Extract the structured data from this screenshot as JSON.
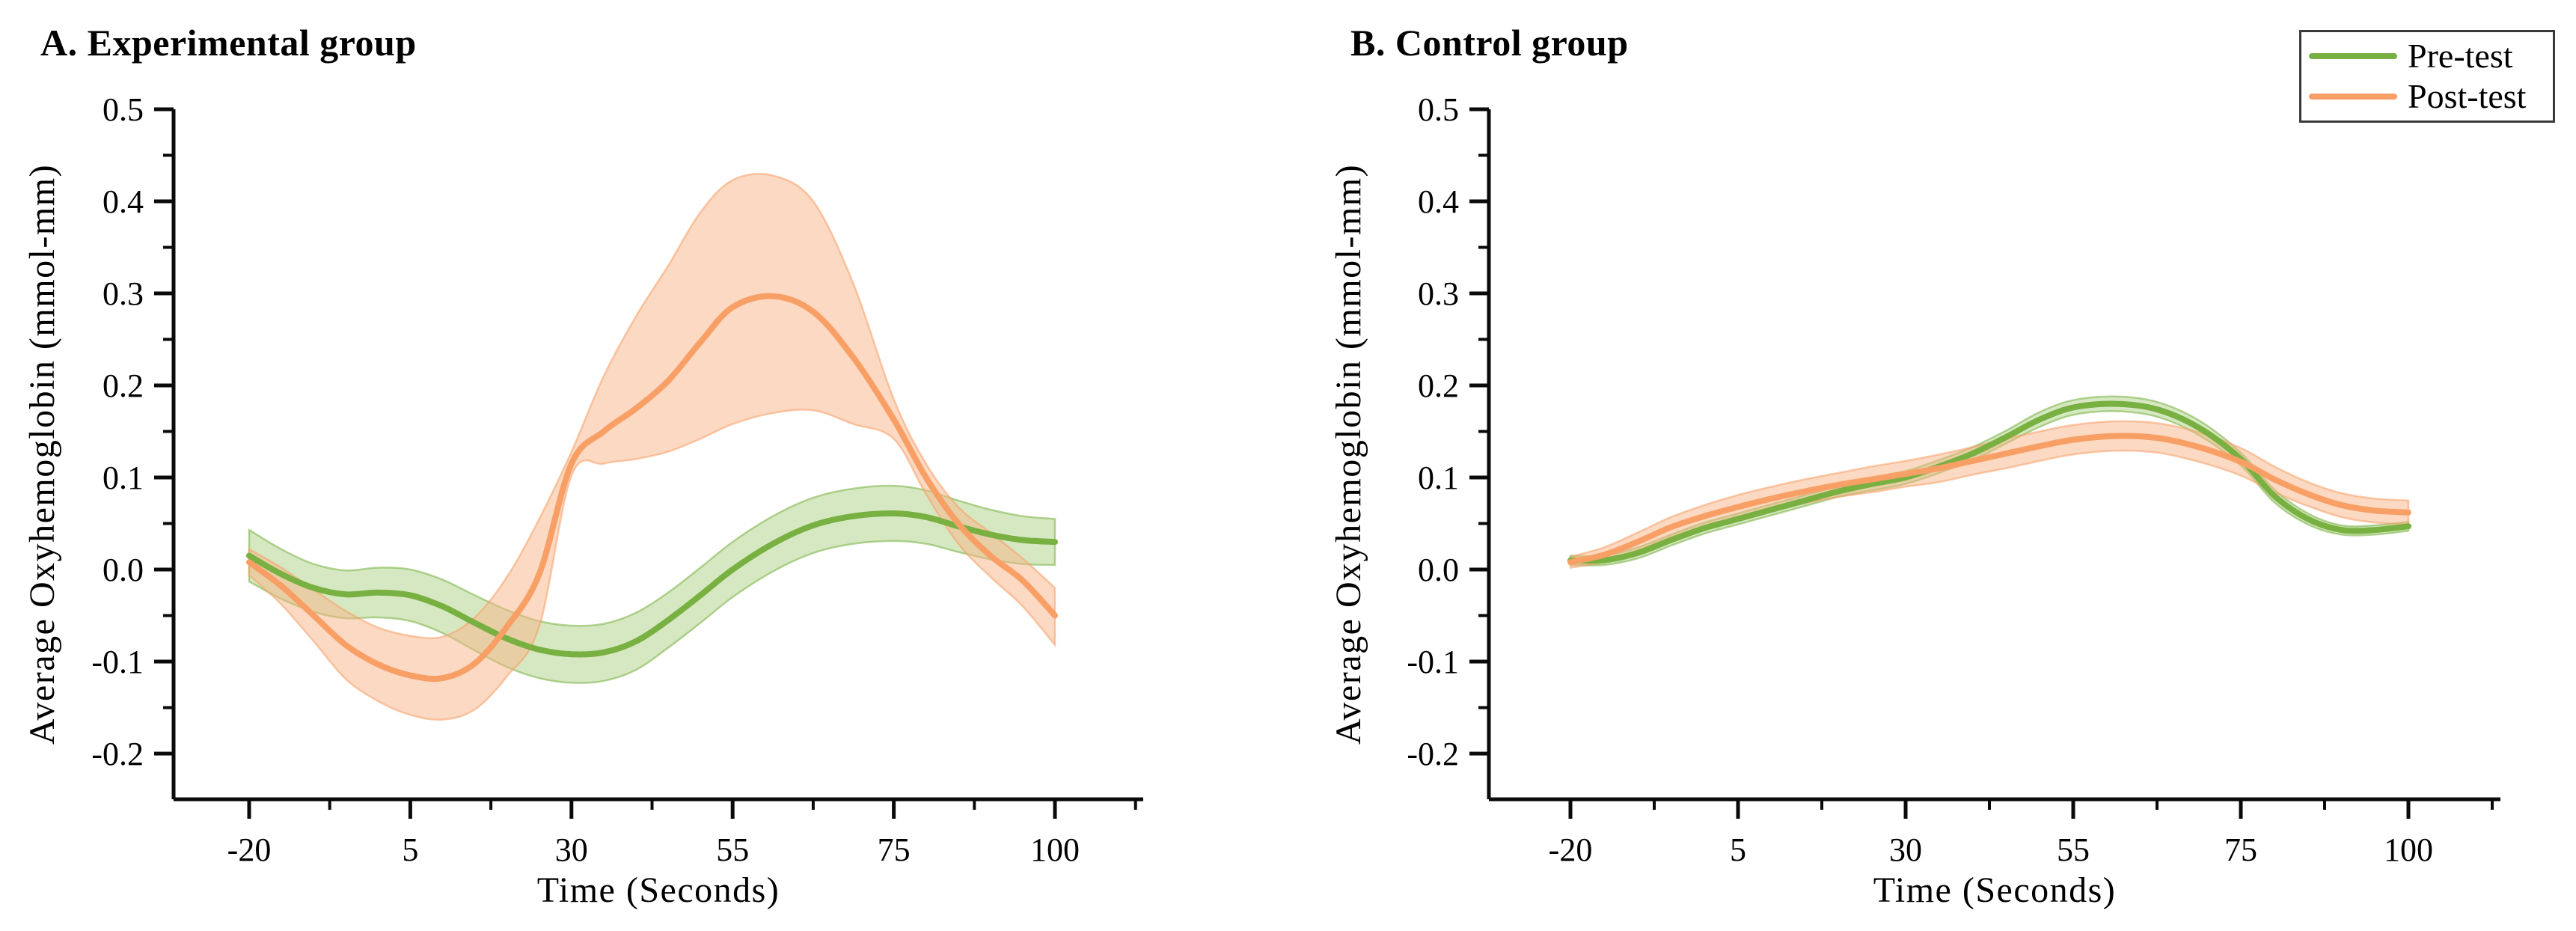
{
  "legend": {
    "items": [
      {
        "label": "Pre-test",
        "color": "#79b042"
      },
      {
        "label": "Post-test",
        "color": "#f89f66"
      }
    ]
  },
  "colors": {
    "axis": "#0a0a0a",
    "pre_line": "#79b042",
    "pre_band": "#aed285",
    "post_line": "#f89f66",
    "post_band": "#f7b486"
  },
  "chart_data": [
    {
      "type": "line",
      "panel": "A",
      "title": "A. Experimental group",
      "xlabel": "Time (Seconds)",
      "ylabel": "Average Oxyhemoglobin (mmol-mm)",
      "x_ticks": [
        -20,
        5,
        30,
        55,
        75,
        100
      ],
      "y_ticks": [
        0.5,
        0.4,
        0.3,
        0.2,
        0.1,
        0.0,
        -0.1,
        -0.2
      ],
      "ylim": [
        -0.25,
        0.5
      ],
      "grid": false,
      "legend_position": "top-right-of-figure",
      "x": [
        -20,
        -15,
        -10,
        -5,
        0,
        5,
        10,
        15,
        20,
        25,
        30,
        35,
        40,
        45,
        50,
        55,
        60,
        65,
        70,
        75,
        80,
        85,
        90,
        95,
        100
      ],
      "series": [
        {
          "name": "Pre-test",
          "color": "#79b042",
          "band_color": "#aed285",
          "mean": [
            0.015,
            -0.005,
            -0.02,
            -0.027,
            -0.025,
            -0.028,
            -0.04,
            -0.058,
            -0.075,
            -0.087,
            -0.092,
            -0.09,
            -0.078,
            -0.055,
            -0.028,
            0.0,
            0.028,
            0.048,
            0.058,
            0.061,
            0.057,
            0.047,
            0.038,
            0.032,
            0.03
          ],
          "upper": [
            0.043,
            0.022,
            0.006,
            -0.001,
            0.002,
            0.0,
            -0.011,
            -0.028,
            -0.044,
            -0.056,
            -0.061,
            -0.059,
            -0.047,
            -0.025,
            0.002,
            0.03,
            0.058,
            0.078,
            0.088,
            0.091,
            0.086,
            0.075,
            0.065,
            0.058,
            0.055
          ],
          "lower": [
            -0.013,
            -0.032,
            -0.046,
            -0.053,
            -0.052,
            -0.056,
            -0.069,
            -0.088,
            -0.106,
            -0.118,
            -0.123,
            -0.121,
            -0.109,
            -0.085,
            -0.058,
            -0.03,
            -0.002,
            0.018,
            0.028,
            0.031,
            0.028,
            0.019,
            0.011,
            0.006,
            0.005
          ]
        },
        {
          "name": "Post-test",
          "color": "#f89f66",
          "band_color": "#f7b486",
          "mean": [
            0.008,
            -0.018,
            -0.05,
            -0.082,
            -0.103,
            -0.115,
            -0.118,
            -0.102,
            -0.062,
            -0.005,
            0.115,
            0.15,
            0.175,
            0.205,
            0.247,
            0.285,
            0.297,
            0.28,
            0.23,
            0.163,
            0.1,
            0.05,
            0.015,
            -0.012,
            -0.05
          ],
          "upper": [
            0.022,
            0.002,
            -0.022,
            -0.045,
            -0.063,
            -0.072,
            -0.073,
            -0.052,
            -0.008,
            0.055,
            0.128,
            0.21,
            0.275,
            0.33,
            0.388,
            0.423,
            0.428,
            0.4,
            0.31,
            0.185,
            0.115,
            0.068,
            0.04,
            0.012,
            -0.02
          ],
          "lower": [
            -0.006,
            -0.038,
            -0.078,
            -0.119,
            -0.143,
            -0.158,
            -0.163,
            -0.152,
            -0.116,
            -0.062,
            0.102,
            0.115,
            0.12,
            0.128,
            0.142,
            0.158,
            0.17,
            0.173,
            0.158,
            0.142,
            0.082,
            0.028,
            -0.008,
            -0.04,
            -0.082
          ]
        }
      ]
    },
    {
      "type": "line",
      "panel": "B",
      "title": "B. Control group",
      "xlabel": "Time (Seconds)",
      "ylabel": "Average Oxyhemoglobin (mmol-mm)",
      "x_ticks": [
        -20,
        5,
        30,
        55,
        75,
        100
      ],
      "y_ticks": [
        0.5,
        0.4,
        0.3,
        0.2,
        0.1,
        0.0,
        -0.1,
        -0.2
      ],
      "ylim": [
        -0.25,
        0.5
      ],
      "grid": false,
      "x": [
        -20,
        -15,
        -10,
        -5,
        0,
        5,
        10,
        15,
        20,
        25,
        30,
        35,
        40,
        45,
        50,
        55,
        60,
        65,
        70,
        75,
        80,
        85,
        90,
        95,
        100
      ],
      "series": [
        {
          "name": "Pre-test",
          "color": "#79b042",
          "band_color": "#aed285",
          "mean": [
            0.01,
            0.01,
            0.018,
            0.032,
            0.045,
            0.055,
            0.065,
            0.075,
            0.085,
            0.093,
            0.1,
            0.112,
            0.126,
            0.144,
            0.163,
            0.176,
            0.18,
            0.174,
            0.154,
            0.12,
            0.08,
            0.055,
            0.043,
            0.043,
            0.047
          ],
          "upper": [
            0.015,
            0.015,
            0.024,
            0.038,
            0.051,
            0.061,
            0.071,
            0.081,
            0.091,
            0.1,
            0.107,
            0.119,
            0.133,
            0.151,
            0.171,
            0.184,
            0.188,
            0.182,
            0.162,
            0.127,
            0.087,
            0.061,
            0.048,
            0.048,
            0.052
          ],
          "lower": [
            0.005,
            0.005,
            0.012,
            0.026,
            0.039,
            0.049,
            0.059,
            0.069,
            0.079,
            0.086,
            0.093,
            0.105,
            0.119,
            0.137,
            0.155,
            0.168,
            0.172,
            0.166,
            0.146,
            0.113,
            0.073,
            0.049,
            0.038,
            0.038,
            0.042
          ]
        },
        {
          "name": "Post-test",
          "color": "#f89f66",
          "band_color": "#f7b486",
          "mean": [
            0.008,
            0.016,
            0.03,
            0.046,
            0.058,
            0.068,
            0.077,
            0.085,
            0.092,
            0.098,
            0.104,
            0.11,
            0.118,
            0.126,
            0.134,
            0.141,
            0.145,
            0.143,
            0.133,
            0.117,
            0.098,
            0.082,
            0.07,
            0.064,
            0.062
          ],
          "upper": [
            0.014,
            0.024,
            0.04,
            0.057,
            0.07,
            0.081,
            0.09,
            0.098,
            0.105,
            0.112,
            0.118,
            0.125,
            0.133,
            0.142,
            0.15,
            0.157,
            0.161,
            0.159,
            0.149,
            0.132,
            0.112,
            0.095,
            0.083,
            0.077,
            0.075
          ],
          "lower": [
            0.002,
            0.008,
            0.02,
            0.035,
            0.046,
            0.055,
            0.064,
            0.072,
            0.079,
            0.084,
            0.09,
            0.095,
            0.103,
            0.11,
            0.118,
            0.125,
            0.129,
            0.127,
            0.117,
            0.102,
            0.084,
            0.069,
            0.057,
            0.051,
            0.049
          ]
        }
      ]
    }
  ]
}
